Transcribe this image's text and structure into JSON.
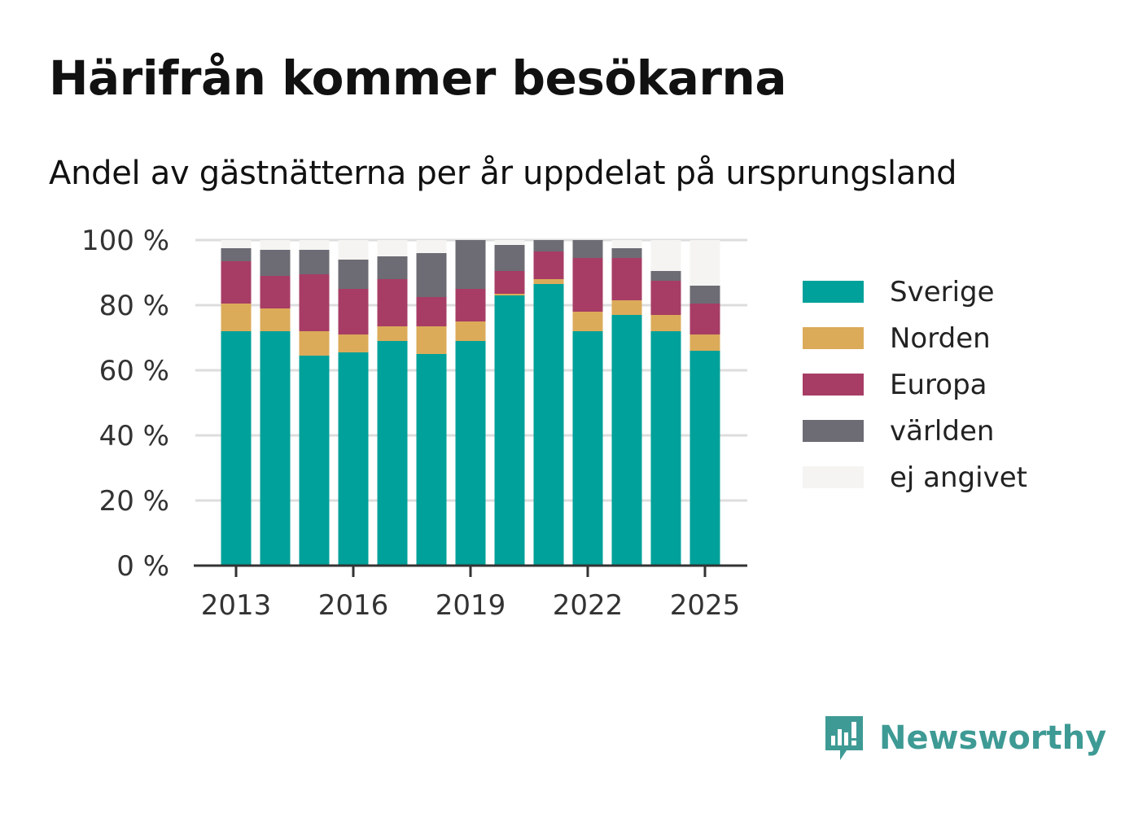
{
  "header": {
    "title": "Härifrån kommer besökarna",
    "subtitle": "Andel av gästnätterna per år uppdelat på ursprungsland"
  },
  "brand": {
    "label": "Newsworthy",
    "color": "#3e9a94"
  },
  "chart_data": {
    "type": "bar",
    "stacked": true,
    "x": [
      2013,
      2014,
      2015,
      2016,
      2017,
      2018,
      2019,
      2020,
      2021,
      2022,
      2023,
      2024,
      2025
    ],
    "x_tick_labels": [
      "2013",
      "2016",
      "2019",
      "2022",
      "2025"
    ],
    "y_tick_labels": [
      "0 %",
      "20 %",
      "40 %",
      "60 %",
      "80 %",
      "100 %"
    ],
    "ylim": [
      0,
      100
    ],
    "grid": true,
    "legend_position": "right",
    "series": [
      {
        "name": "Sverige",
        "color": "#00a19a",
        "values": [
          72,
          72,
          64.5,
          65.5,
          69,
          65,
          69,
          83,
          86.5,
          72,
          77,
          72,
          66
        ]
      },
      {
        "name": "Norden",
        "color": "#dbab5a",
        "values": [
          8.5,
          7,
          7.5,
          5.5,
          4.5,
          8.5,
          6,
          0.5,
          1.5,
          6,
          4.5,
          5,
          5
        ]
      },
      {
        "name": "Europa",
        "color": "#a73d65",
        "values": [
          13,
          10,
          17.5,
          14,
          14.5,
          9,
          10,
          7,
          8.5,
          16.5,
          13,
          10.5,
          9.5
        ]
      },
      {
        "name": "världen",
        "color": "#6d6c74",
        "values": [
          4,
          8,
          7.5,
          9,
          7,
          13.5,
          15,
          8,
          3.5,
          5.5,
          3,
          3,
          5.5
        ]
      },
      {
        "name": "ej angivet",
        "color": "#f5f4f2",
        "values": [
          2.5,
          3,
          3,
          6,
          5,
          4,
          0,
          1.5,
          0,
          0,
          2.5,
          9.5,
          14
        ]
      }
    ]
  }
}
